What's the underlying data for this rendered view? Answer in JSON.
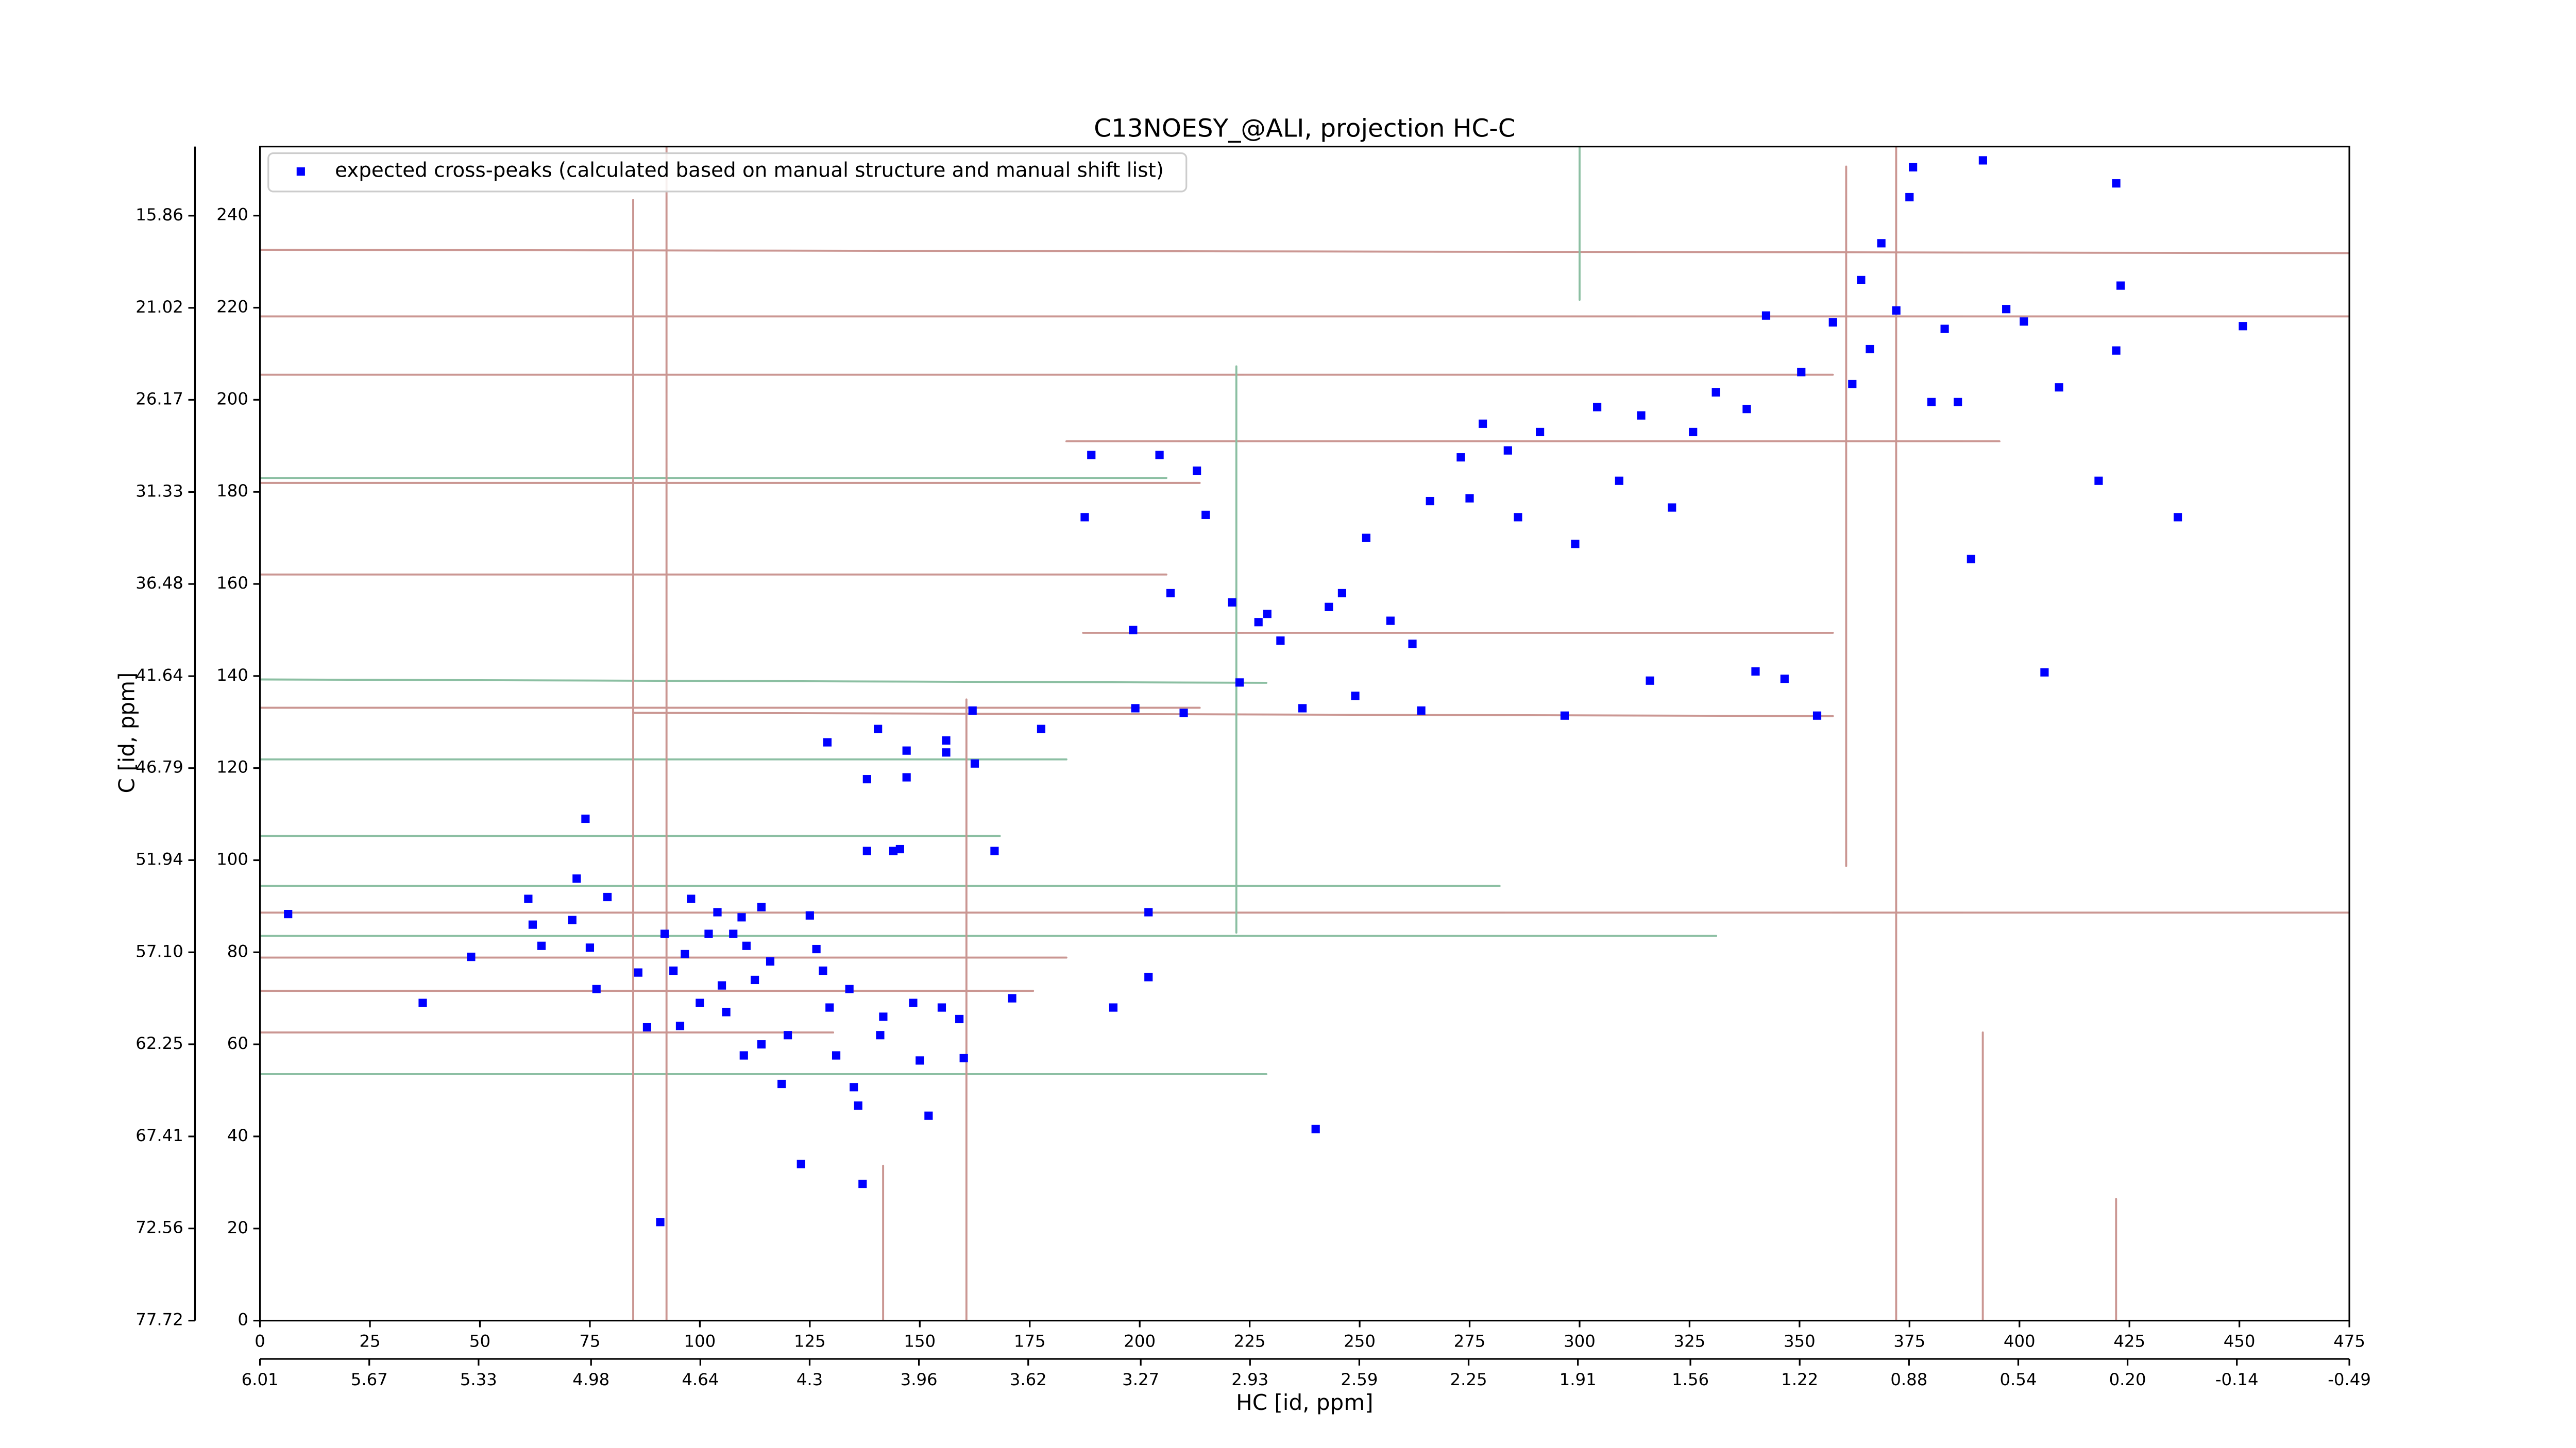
{
  "chart_data": {
    "type": "scatter",
    "title": "C13NOESY_@ALI, projection HC-C",
    "xlabel": "HC [id, ppm]",
    "ylabel": "C [id, ppm]",
    "legend": "upper left",
    "xlim": [
      0,
      475
    ],
    "ylim": [
      0,
      255
    ],
    "xticks": [
      0,
      25,
      50,
      75,
      100,
      125,
      150,
      175,
      200,
      225,
      250,
      275,
      300,
      325,
      350,
      375,
      400,
      425,
      450,
      475
    ],
    "yticks": [
      0,
      20,
      40,
      60,
      80,
      100,
      120,
      140,
      160,
      180,
      200,
      220,
      240
    ],
    "x2lim": [
      6.01,
      -0.49
    ],
    "x2ticks": [
      6.01,
      5.67,
      5.33,
      4.98,
      4.64,
      4.3,
      3.96,
      3.62,
      3.27,
      2.93,
      2.59,
      2.25,
      1.91,
      1.56,
      1.22,
      0.88,
      0.54,
      {
        "value": 0.2,
        "label": "0.20"
      },
      -0.14,
      -0.49
    ],
    "y2lim": [
      77.72,
      11.99
    ],
    "y2ticks": [
      77.72,
      72.56,
      67.41,
      62.25,
      {
        "value": 57.1,
        "label": "57.10"
      },
      51.94,
      46.79,
      41.64,
      36.48,
      31.33,
      26.17,
      21.02,
      15.86
    ],
    "series": [
      {
        "name": "expected cross-peaks (calculated based on manual structure and manual shift list)",
        "color": "#0000ff",
        "x": [
          6.4,
          48,
          37,
          61,
          62,
          64,
          71,
          74,
          75,
          76.5,
          72,
          79,
          86,
          88,
          91,
          92,
          94,
          95.5,
          96.6,
          98,
          100,
          102,
          104,
          105,
          106,
          107.6,
          109.5,
          110.6,
          112.5,
          114,
          116,
          110,
          114,
          118.6,
          120,
          123,
          125,
          126.5,
          128,
          129,
          129.5,
          131,
          134,
          135,
          136,
          137,
          138,
          138,
          140.5,
          141,
          141.7,
          144,
          145.5,
          147,
          147,
          148.5,
          150,
          152,
          155,
          156,
          156,
          159,
          160,
          162,
          162.5,
          167,
          171,
          177.6,
          187.5,
          189,
          194,
          198.5,
          199,
          202,
          202,
          204.5,
          207,
          210,
          213,
          215,
          221,
          222.7,
          227,
          229,
          232,
          237,
          240,
          243,
          246,
          249,
          251.5,
          257,
          262,
          264,
          266,
          273,
          275,
          278,
          283.7,
          286,
          291,
          296.6,
          299,
          304,
          309,
          314,
          316,
          321,
          325.8,
          331,
          338,
          340,
          342.4,
          346.6,
          350.4,
          354,
          357.6,
          362,
          364,
          366,
          368.6,
          372,
          375,
          375.8,
          380,
          383,
          386,
          389,
          391.7,
          397,
          401,
          405.7,
          409,
          418,
          422,
          422,
          423,
          436,
          450.8
        ],
        "values": [
          88.3,
          79,
          69,
          91.6,
          86,
          81.4,
          87,
          109,
          81,
          72,
          96,
          92,
          75.6,
          63.7,
          21.4,
          84,
          76,
          64,
          79.6,
          91.6,
          69,
          84,
          88.7,
          72.8,
          67,
          84,
          87.6,
          81.4,
          74,
          89.8,
          78,
          57.6,
          60,
          51.4,
          62,
          34,
          88,
          80.7,
          76,
          125.6,
          68,
          57.6,
          72,
          50.7,
          46.7,
          29.7,
          117.6,
          102,
          128.5,
          62,
          66,
          102,
          102.4,
          123.8,
          118,
          69,
          56.5,
          44.5,
          68,
          123.4,
          126,
          65.5,
          57,
          132.5,
          121,
          102,
          70,
          128.5,
          174.5,
          188,
          68,
          150,
          133,
          88.7,
          74.6,
          188,
          158,
          132,
          184.6,
          175,
          156,
          138.6,
          151.7,
          153.5,
          147.7,
          133,
          41.6,
          155,
          158,
          135.7,
          170,
          152,
          147,
          132.5,
          178,
          187.5,
          178.6,
          194.8,
          189,
          174.5,
          193,
          131.4,
          168.7,
          198.4,
          182.4,
          196.6,
          139,
          176.6,
          193,
          201.6,
          198,
          141,
          218.3,
          139.4,
          206,
          131.4,
          216.8,
          203.4,
          226,
          211,
          234,
          219.4,
          244,
          250.5,
          199.5,
          215.4,
          199.5,
          165.4,
          252,
          219.7,
          217,
          140.8,
          202.7,
          182.4,
          210.7,
          247,
          224.8,
          174.5,
          216
        ]
      }
    ]
  }
}
